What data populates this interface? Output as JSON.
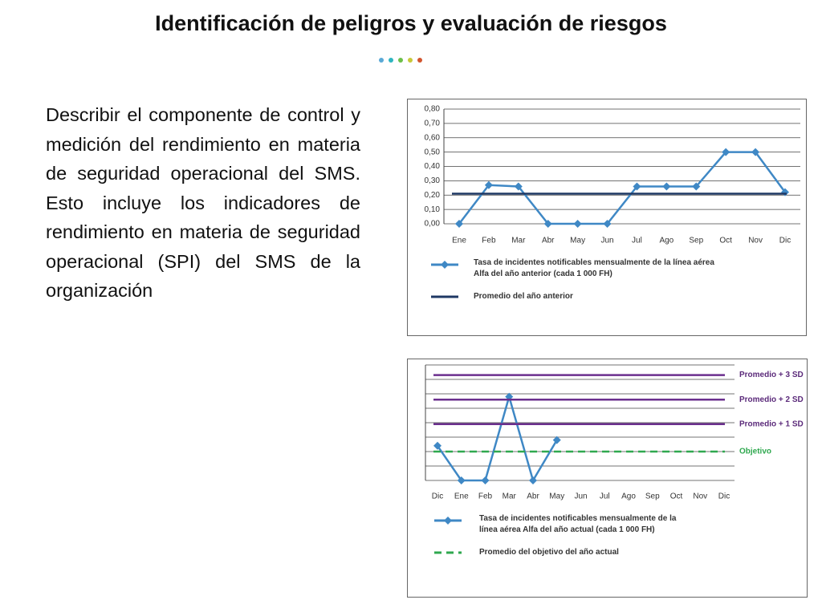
{
  "title": "Identificación de peligros y evaluación de riesgos",
  "body": "Describir el componente de control y medición del rendimiento en materia de seguridad operacional del SMS. Esto incluye los indicadores de rendimiento en materia de seguridad operacional (SPI) del SMS de la organización",
  "chart_data": [
    {
      "type": "line",
      "categories": [
        "Ene",
        "Feb",
        "Mar",
        "Abr",
        "May",
        "Jun",
        "Jul",
        "Ago",
        "Sep",
        "Oct",
        "Nov",
        "Dic"
      ],
      "series": [
        {
          "name": "Tasa de incidentes notificables mensualmente de la línea aérea Alfa del año anterior (cada 1 000 FH)",
          "color": "#3f88c5",
          "values": [
            0,
            0.27,
            0.26,
            0,
            0,
            0,
            0.26,
            0.26,
            0.26,
            0.5,
            0.5,
            0.22
          ]
        }
      ],
      "reference_lines": [
        {
          "name": "Promedio del año anterior",
          "value": 0.21,
          "color": "#1f3864",
          "style": "solid"
        }
      ],
      "ylim": [
        0,
        0.8
      ],
      "yticks": [
        {
          "value": 0,
          "label": "0,00"
        },
        {
          "value": 0.1,
          "label": "0,10"
        },
        {
          "value": 0.2,
          "label": "0,20"
        },
        {
          "value": 0.3,
          "label": "0,30"
        },
        {
          "value": 0.4,
          "label": "0,40"
        },
        {
          "value": 0.5,
          "label": "0,50"
        },
        {
          "value": 0.6,
          "label": "0,60"
        },
        {
          "value": 0.7,
          "label": "0,70"
        },
        {
          "value": 0.8,
          "label": "0,80"
        }
      ],
      "grid": true
    },
    {
      "type": "line",
      "categories": [
        "Dic",
        "Ene",
        "Feb",
        "Mar",
        "Abr",
        "May",
        "Jun",
        "Jul",
        "Ago",
        "Sep",
        "Oct",
        "Nov",
        "Dic"
      ],
      "series": [
        {
          "name": "Tasa de incidentes notificables mensualmente de la línea aérea Alfa del año actual (cada 1 000 FH)",
          "color": "#3f88c5",
          "values": [
            0.24,
            0,
            0,
            0.58,
            0,
            0.28,
            null,
            null,
            null,
            null,
            null,
            null,
            null
          ]
        }
      ],
      "reference_lines": [
        {
          "label": "Promedio + 3 SD",
          "value": 0.73,
          "color": "#6b2f8e",
          "style": "solid"
        },
        {
          "label": "Promedio + 2 SD",
          "value": 0.56,
          "color": "#6b2f8e",
          "style": "solid"
        },
        {
          "label": "Promedio + 1 SD",
          "value": 0.39,
          "color": "#6b2f8e",
          "style": "solid"
        },
        {
          "label": "Objetivo",
          "name": "Promedio del objetivo del año actual",
          "value": 0.2,
          "color": "#2fa84f",
          "style": "dashed"
        }
      ],
      "ylim": [
        0,
        0.8
      ],
      "grid": true
    }
  ]
}
